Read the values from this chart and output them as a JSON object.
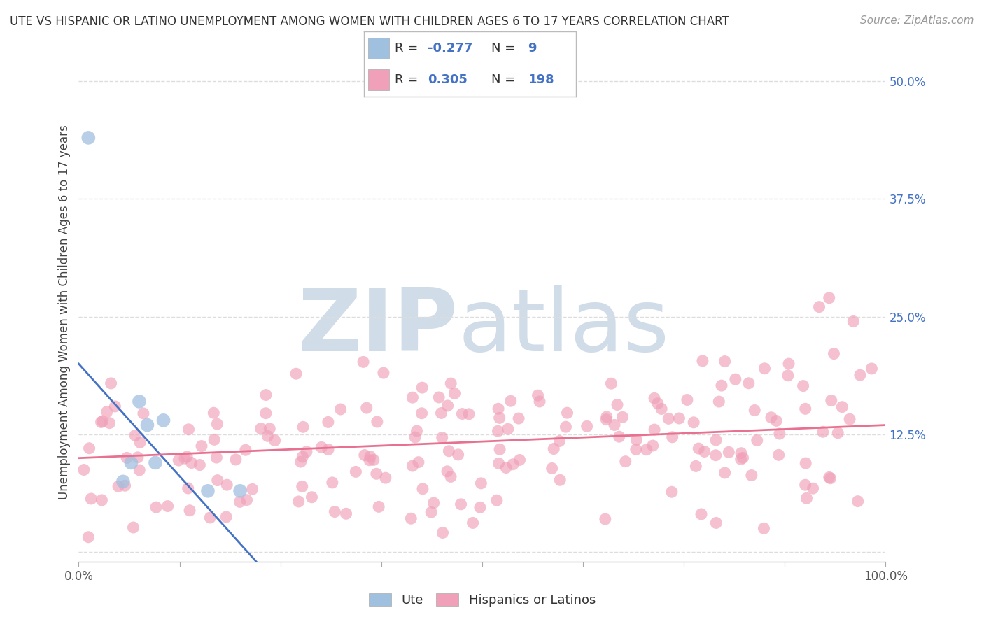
{
  "title": "UTE VS HISPANIC OR LATINO UNEMPLOYMENT AMONG WOMEN WITH CHILDREN AGES 6 TO 17 YEARS CORRELATION CHART",
  "source": "Source: ZipAtlas.com",
  "ylabel": "Unemployment Among Women with Children Ages 6 to 17 years",
  "xlim": [
    0,
    1.0
  ],
  "ylim": [
    -0.01,
    0.52
  ],
  "xticks": [
    0.0,
    0.125,
    0.25,
    0.375,
    0.5,
    0.625,
    0.75,
    0.875,
    1.0
  ],
  "xticklabels_show": {
    "0.0": "0.0%",
    "1.0": "100.0%"
  },
  "ytick_vals": [
    0.0,
    0.125,
    0.25,
    0.375,
    0.5
  ],
  "ytick_labels": [
    "",
    "12.5%",
    "25.0%",
    "37.5%",
    "50.0%"
  ],
  "ute_color": "#a0c0e0",
  "latino_color": "#f0a0b8",
  "ute_line_color": "#4472c4",
  "latino_line_color": "#e87090",
  "watermark_zip": "ZIP",
  "watermark_atlas": "atlas",
  "watermark_color": "#d0dce8",
  "background_color": "#ffffff",
  "grid_color": "#dddddd",
  "ute_scatter_x": [
    0.012,
    0.055,
    0.065,
    0.075,
    0.085,
    0.095,
    0.105,
    0.16,
    0.2
  ],
  "ute_scatter_y": [
    0.44,
    0.075,
    0.095,
    0.16,
    0.135,
    0.095,
    0.14,
    0.065,
    0.065
  ],
  "ute_line_x0": 0.0,
  "ute_line_y0": 0.2,
  "ute_line_x1": 0.22,
  "ute_line_y1": -0.01,
  "latino_line_x0": 0.0,
  "latino_line_y0": 0.1,
  "latino_line_x1": 1.0,
  "latino_line_y1": 0.135,
  "legend_R_ute": "-0.277",
  "legend_N_ute": "9",
  "legend_R_latino": "0.305",
  "legend_N_latino": "198",
  "title_fontsize": 12,
  "axis_label_fontsize": 12,
  "tick_fontsize": 12,
  "legend_fontsize": 13,
  "source_fontsize": 11,
  "ytick_color": "#4472c4",
  "xtick_color": "#555555",
  "axis_label_color": "#444444"
}
